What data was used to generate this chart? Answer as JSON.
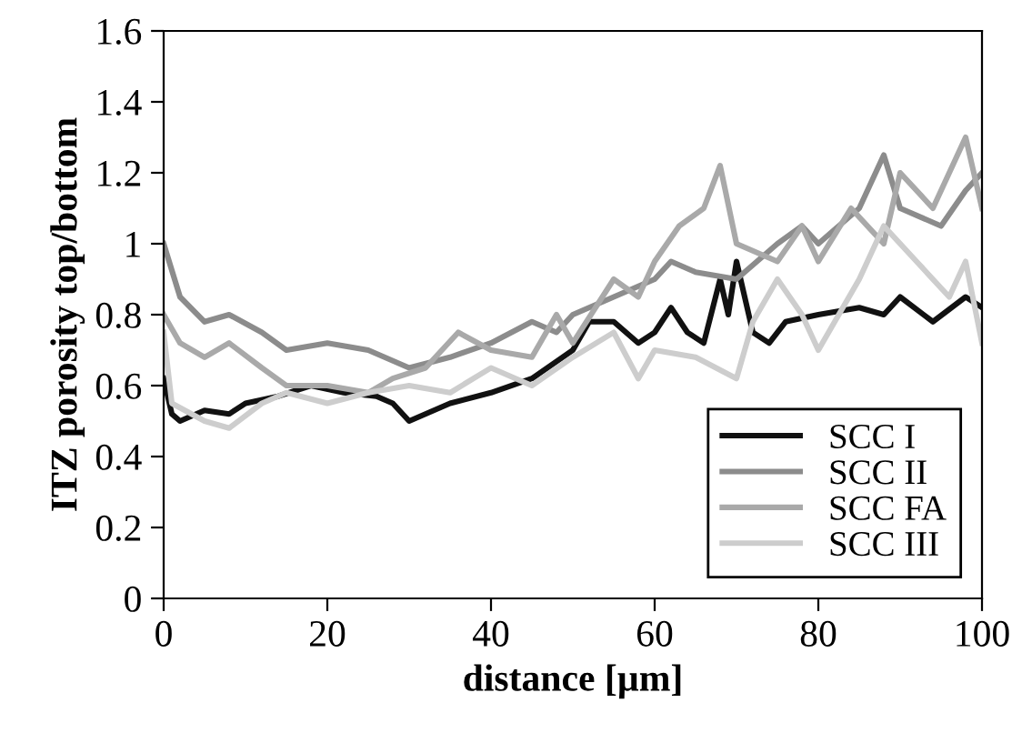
{
  "chart_data": {
    "type": "line",
    "xlabel": "distance [µm]",
    "ylabel": "ITZ porosity top/bottom",
    "xlim": [
      0,
      100
    ],
    "xticks": [
      0,
      20,
      40,
      60,
      80,
      100
    ],
    "ylim": [
      0,
      1.6
    ],
    "yticks": [
      0,
      0.2,
      0.4,
      0.6,
      0.8,
      1,
      1.2,
      1.4,
      1.6
    ],
    "grid": false,
    "legend": "bottom right",
    "marker": "none",
    "line_style": "solid",
    "series": [
      {
        "name": "SCC I",
        "color": "#111111",
        "x": [
          0,
          1,
          2,
          5,
          8,
          10,
          14,
          18,
          22,
          26,
          28,
          30,
          35,
          40,
          45,
          50,
          52,
          55,
          58,
          60,
          62,
          64,
          66,
          68,
          69,
          70,
          72,
          74,
          76,
          80,
          85,
          88,
          90,
          94,
          98,
          100
        ],
        "values": [
          0.62,
          0.52,
          0.5,
          0.53,
          0.52,
          0.55,
          0.57,
          0.6,
          0.58,
          0.57,
          0.55,
          0.5,
          0.55,
          0.58,
          0.62,
          0.7,
          0.78,
          0.78,
          0.72,
          0.75,
          0.82,
          0.75,
          0.72,
          0.9,
          0.8,
          0.95,
          0.75,
          0.72,
          0.78,
          0.8,
          0.82,
          0.8,
          0.85,
          0.78,
          0.85,
          0.82
        ]
      },
      {
        "name": "SCC II",
        "color": "#8c8c8c",
        "x": [
          0,
          2,
          5,
          8,
          12,
          15,
          20,
          25,
          30,
          35,
          40,
          45,
          48,
          50,
          55,
          60,
          62,
          65,
          70,
          75,
          78,
          80,
          85,
          88,
          90,
          95,
          98,
          100
        ],
        "values": [
          1.0,
          0.85,
          0.78,
          0.8,
          0.75,
          0.7,
          0.72,
          0.7,
          0.65,
          0.68,
          0.72,
          0.78,
          0.75,
          0.8,
          0.85,
          0.9,
          0.95,
          0.92,
          0.9,
          1.0,
          1.05,
          1.0,
          1.1,
          1.25,
          1.1,
          1.05,
          1.15,
          1.2
        ]
      },
      {
        "name": "SCC FA",
        "color": "#a9a9a9",
        "x": [
          0,
          2,
          5,
          8,
          12,
          15,
          20,
          25,
          28,
          32,
          36,
          40,
          45,
          48,
          50,
          55,
          58,
          60,
          63,
          66,
          68,
          70,
          75,
          78,
          80,
          84,
          88,
          90,
          94,
          98,
          100
        ],
        "values": [
          0.8,
          0.72,
          0.68,
          0.72,
          0.65,
          0.6,
          0.6,
          0.58,
          0.62,
          0.65,
          0.75,
          0.7,
          0.68,
          0.8,
          0.72,
          0.9,
          0.85,
          0.95,
          1.05,
          1.1,
          1.22,
          1.0,
          0.95,
          1.05,
          0.95,
          1.1,
          1.0,
          1.2,
          1.1,
          1.3,
          1.1
        ]
      },
      {
        "name": "SCC III",
        "color": "#cdcdcd",
        "x": [
          0,
          1,
          5,
          8,
          12,
          15,
          20,
          25,
          30,
          35,
          40,
          45,
          50,
          55,
          58,
          60,
          65,
          70,
          72,
          75,
          78,
          80,
          85,
          88,
          92,
          96,
          98,
          100
        ],
        "values": [
          0.75,
          0.55,
          0.5,
          0.48,
          0.55,
          0.58,
          0.55,
          0.58,
          0.6,
          0.58,
          0.65,
          0.6,
          0.68,
          0.75,
          0.62,
          0.7,
          0.68,
          0.62,
          0.78,
          0.9,
          0.8,
          0.7,
          0.9,
          1.05,
          0.95,
          0.85,
          0.95,
          0.72
        ]
      }
    ]
  }
}
